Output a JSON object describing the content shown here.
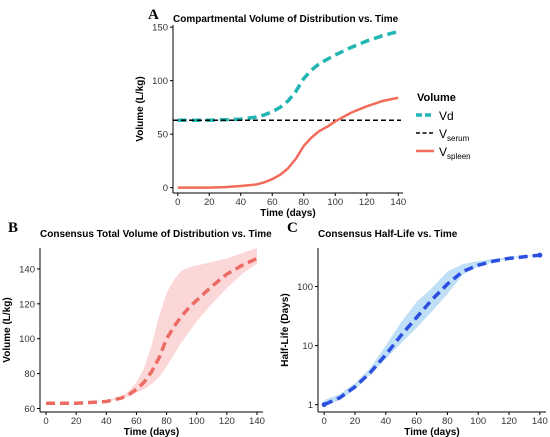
{
  "colors": {
    "vd": "#22b6b2",
    "serum": "#000000",
    "spleen": "#f26b5b",
    "consensus_line": "#ec6b64",
    "consensus_band": "#f9c9c9",
    "halflife_line": "#2b4fe0",
    "halflife_band": "#a9d4f3"
  },
  "chart_data": [
    {
      "panel": "A",
      "type": "line",
      "title": "Compartmental Volume of Distribution vs. Time",
      "xlabel": "Time (days)",
      "ylabel": "Volume (L/kg)",
      "xlim": [
        -3,
        143
      ],
      "ylim": [
        -5,
        152
      ],
      "xticks": [
        0,
        20,
        40,
        60,
        80,
        100,
        120,
        140
      ],
      "yticks": [
        0,
        50,
        100,
        150
      ],
      "grid": false,
      "legend": {
        "title": "Volume",
        "placement": "right",
        "entries": [
          {
            "key": "vd",
            "label": "Vd",
            "sub": ""
          },
          {
            "key": "serum",
            "label": "V",
            "sub": "serum"
          },
          {
            "key": "spleen",
            "label": "V",
            "sub": "spleen"
          }
        ]
      },
      "series": [
        {
          "key": "vd",
          "style": "dashed-thick",
          "x": [
            0,
            10,
            20,
            30,
            40,
            50,
            55,
            60,
            65,
            70,
            75,
            80,
            85,
            90,
            95,
            100,
            110,
            120,
            130,
            140
          ],
          "y": [
            63,
            63,
            63,
            63.5,
            64,
            66,
            68,
            71,
            75,
            81,
            90,
            102,
            110,
            116,
            120,
            124,
            131,
            137,
            142,
            146
          ]
        },
        {
          "key": "serum",
          "style": "dashed-thin",
          "x": [
            0,
            140
          ],
          "y": [
            63,
            63
          ]
        },
        {
          "key": "spleen",
          "style": "solid",
          "x": [
            0,
            10,
            20,
            30,
            40,
            50,
            55,
            60,
            65,
            70,
            75,
            80,
            85,
            90,
            95,
            100,
            110,
            120,
            130,
            140
          ],
          "y": [
            0,
            0,
            0,
            0.5,
            1.5,
            3,
            5,
            8,
            12,
            18,
            27,
            39,
            47,
            53,
            57,
            62,
            70,
            76,
            81,
            84
          ]
        }
      ]
    },
    {
      "panel": "B",
      "type": "line",
      "title": "Consensus Total Volume of Distribution vs. Time",
      "xlabel": "Time (days)",
      "ylabel": "Volume (L/kg)",
      "xlim": [
        -4,
        144
      ],
      "ylim": [
        58,
        152
      ],
      "xticks": [
        0,
        20,
        40,
        60,
        80,
        100,
        120,
        140
      ],
      "yticks": [
        60,
        80,
        100,
        120,
        140
      ],
      "grid": false,
      "series": [
        {
          "key": "consensus",
          "style": "dashed-thick",
          "x": [
            0,
            10,
            20,
            30,
            40,
            50,
            55,
            60,
            65,
            70,
            75,
            80,
            85,
            90,
            95,
            100,
            110,
            120,
            130,
            140
          ],
          "y": [
            63,
            63,
            63,
            63.5,
            64,
            66,
            68,
            71,
            75,
            81,
            89,
            100,
            107,
            113,
            118,
            122,
            130,
            137,
            142,
            146
          ],
          "band_lower": [
            63,
            63,
            63,
            63.5,
            64,
            65.5,
            67,
            69,
            71,
            74,
            78,
            84,
            91,
            98,
            104,
            110,
            120,
            129,
            137,
            143
          ],
          "band_upper": [
            63,
            63,
            63,
            63.5,
            64.5,
            67,
            70,
            75,
            83,
            96,
            113,
            126,
            134,
            139,
            141,
            142,
            144,
            146,
            149,
            152
          ]
        }
      ]
    },
    {
      "panel": "C",
      "type": "line",
      "title": "Consensus Half-Life vs. Time",
      "xlabel": "Time (days)",
      "ylabel": "Half-Life (Days)",
      "xscale": "log-y",
      "xlim": [
        -4,
        144
      ],
      "ylim": [
        0.75,
        450
      ],
      "xticks": [
        0,
        20,
        40,
        60,
        80,
        100,
        120,
        140
      ],
      "yticks": [
        1,
        10,
        100
      ],
      "grid": false,
      "series": [
        {
          "key": "halflife",
          "style": "dashed-thick",
          "x": [
            0,
            10,
            20,
            30,
            40,
            50,
            60,
            70,
            80,
            90,
            100,
            110,
            120,
            130,
            140
          ],
          "y": [
            1,
            1.3,
            2,
            3.5,
            7,
            15,
            30,
            60,
            110,
            180,
            230,
            270,
            300,
            320,
            340
          ],
          "band_lower": [
            0.95,
            1.2,
            1.8,
            3.2,
            6,
            11,
            20,
            38,
            75,
            160,
            220,
            262,
            295,
            318,
            338
          ],
          "band_upper": [
            1.2,
            1.5,
            2.3,
            4.2,
            10,
            25,
            55,
            95,
            180,
            240,
            270,
            295,
            315,
            330,
            345
          ]
        }
      ]
    }
  ]
}
